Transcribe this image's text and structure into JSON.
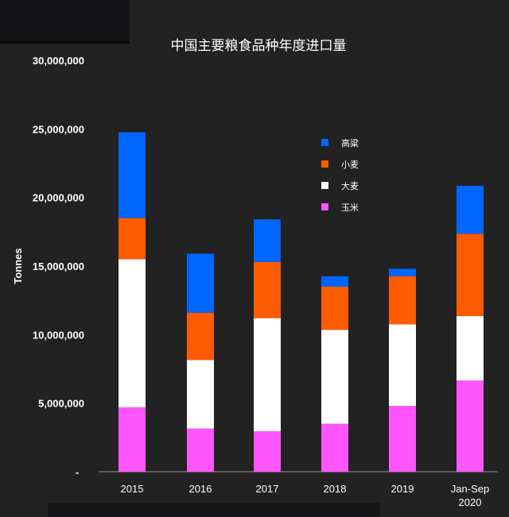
{
  "chart_data": {
    "type": "bar",
    "stacked": true,
    "title": "中国主要粮食品种年度进口量",
    "xlabel": "",
    "ylabel": "Tonnes",
    "categories": [
      "2015",
      "2016",
      "2017",
      "2018",
      "2019",
      "Jan-Sep 2020"
    ],
    "ylim": [
      0,
      30000000
    ],
    "yticks": [
      0,
      5000000,
      10000000,
      15000000,
      20000000,
      25000000,
      30000000
    ],
    "ytick_labels": [
      "-",
      "5,000,000",
      "10,000,000",
      "15,000,000",
      "20,000,000",
      "25,000,000",
      "30,000,000"
    ],
    "series": [
      {
        "name": "玉米",
        "color": "#ff55ff",
        "values": [
          4700000,
          3150000,
          2950000,
          3500000,
          4800000,
          6650000
        ]
      },
      {
        "name": "大麦",
        "color": "#ffffff",
        "values": [
          10800000,
          5000000,
          8250000,
          6850000,
          5950000,
          4700000
        ]
      },
      {
        "name": "小麦",
        "color": "#ff5b00",
        "values": [
          3000000,
          3450000,
          4100000,
          3150000,
          3500000,
          6000000
        ]
      },
      {
        "name": "高粱",
        "color": "#0066ff",
        "values": [
          6250000,
          4300000,
          3100000,
          750000,
          550000,
          3500000
        ]
      }
    ],
    "legend_position": "upper-center",
    "grid": false
  }
}
